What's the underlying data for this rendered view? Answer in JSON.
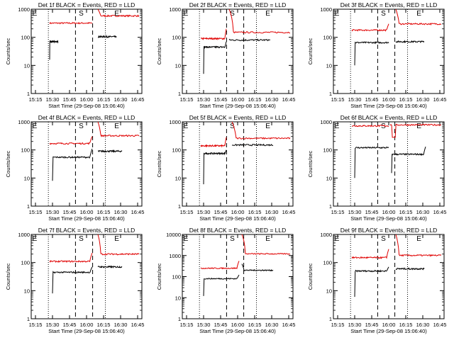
{
  "chart_data": [
    {
      "type": "line",
      "title": "Det 1f BLACK = Events, RED = LLD",
      "xlabel": "Start Time (29-Sep-08 15:06:40)",
      "ylabel": "Counts/sec",
      "xticks": [
        "15:15",
        "15:30",
        "15:45",
        "16:00",
        "16:15",
        "16:30",
        "16:45"
      ],
      "yticks": [
        "1",
        "10",
        "100",
        "1000"
      ],
      "ylim": [
        1,
        1000
      ],
      "yscale": "log",
      "markers": [
        "S",
        "E"
      ],
      "series": [
        {
          "name": "LLD",
          "color": "#e00000",
          "segments": [
            {
              "t0": 15.5,
              "t1": 30.5,
              "base": 320
            },
            {
              "t0": 32.5,
              "t1": 47,
              "base": 580,
              "peak": 1000
            }
          ]
        },
        {
          "name": "Events",
          "color": "#000000",
          "segments": [
            {
              "t0": 15.5,
              "t1": 18.5,
              "base": 70,
              "start": 16
            },
            {
              "t0": 32.5,
              "t1": 39,
              "base": 105
            }
          ]
        }
      ]
    },
    {
      "type": "line",
      "title": "Det 2f BLACK = Events, RED = LLD",
      "xlabel": "Start Time (29-Sep-08 15:06:40)",
      "ylabel": "Counts/sec",
      "xticks": [
        "15:15",
        "15:30",
        "15:45",
        "16:00",
        "16:15",
        "16:30",
        "16:45"
      ],
      "yticks": [
        "1",
        "10",
        "100",
        "1000"
      ],
      "ylim": [
        1,
        1000
      ],
      "yscale": "log",
      "markers": [
        "S",
        "E"
      ],
      "series": [
        {
          "name": "LLD",
          "color": "#e00000",
          "segments": [
            {
              "t0": 15.5,
              "t1": 24.5,
              "base": 90,
              "end": 200
            },
            {
              "t0": 25.5,
              "t1": 47,
              "base": 150,
              "peak": 1000
            }
          ]
        },
        {
          "name": "Events",
          "color": "#000000",
          "segments": [
            {
              "t0": 16.5,
              "t1": 24.5,
              "base": 45,
              "start": 5,
              "end": 70
            },
            {
              "t0": 25.5,
              "t1": 40,
              "base": 80
            }
          ]
        }
      ]
    },
    {
      "type": "line",
      "title": "Det 3f BLACK = Events, RED = LLD",
      "xlabel": "Start Time (29-Sep-08 15:06:40)",
      "ylabel": "Counts/sec",
      "xticks": [
        "15:15",
        "15:30",
        "15:45",
        "16:00",
        "16:15",
        "16:30",
        "16:45"
      ],
      "yticks": [
        "1",
        "10",
        "100",
        "1000"
      ],
      "ylim": [
        1,
        1000
      ],
      "yscale": "log",
      "markers": [
        "S",
        "E"
      ],
      "series": [
        {
          "name": "LLD",
          "color": "#e00000",
          "segments": [
            {
              "t0": 15.5,
              "t1": 28.5,
              "base": 180,
              "end": 300
            },
            {
              "t0": 31,
              "t1": 47,
              "base": 300,
              "peak": 1000
            }
          ]
        },
        {
          "name": "Events",
          "color": "#000000",
          "segments": [
            {
              "t0": 16.5,
              "t1": 28.5,
              "base": 65,
              "start": 10
            },
            {
              "t0": 31,
              "t1": 41,
              "base": 70
            }
          ]
        }
      ]
    },
    {
      "type": "line",
      "title": "Det 4f BLACK = Events, RED = LLD",
      "xlabel": "Start Time (29-Sep-08 15:06:40)",
      "ylabel": "Counts/sec",
      "xticks": [
        "15:15",
        "15:30",
        "15:45",
        "16:00",
        "16:15",
        "16:30",
        "16:45"
      ],
      "yticks": [
        "1",
        "10",
        "100",
        "1000"
      ],
      "ylim": [
        1,
        1000
      ],
      "yscale": "log",
      "markers": [
        "S",
        "E"
      ],
      "series": [
        {
          "name": "LLD",
          "color": "#e00000",
          "segments": [
            {
              "t0": 15.5,
              "t1": 30.5,
              "base": 170,
              "end": 300
            },
            {
              "t0": 32.5,
              "t1": 47,
              "base": 320,
              "peak": 1000
            }
          ]
        },
        {
          "name": "Events",
          "color": "#000000",
          "segments": [
            {
              "t0": 16.5,
              "t1": 30.5,
              "base": 55,
              "start": 8,
              "end": 110
            },
            {
              "t0": 32.5,
              "t1": 41,
              "base": 90
            }
          ]
        }
      ]
    },
    {
      "type": "line",
      "title": "Det 5f BLACK = Events, RED = LLD",
      "xlabel": "Start Time (29-Sep-08 15:06:40)",
      "ylabel": "Counts/sec",
      "xticks": [
        "15:15",
        "15:30",
        "15:45",
        "16:00",
        "16:15",
        "16:30",
        "16:45"
      ],
      "yticks": [
        "1",
        "10",
        "100",
        "1000"
      ],
      "ylim": [
        1,
        1000
      ],
      "yscale": "log",
      "markers": [
        "S",
        "E"
      ],
      "series": [
        {
          "name": "LLD",
          "color": "#e00000",
          "segments": [
            {
              "t0": 15.5,
              "t1": 24.5,
              "base": 140,
              "end": 280
            },
            {
              "t0": 26.5,
              "t1": 47,
              "base": 260,
              "peak": 1000
            }
          ]
        },
        {
          "name": "Events",
          "color": "#000000",
          "segments": [
            {
              "t0": 16.5,
              "t1": 24.5,
              "base": 75,
              "start": 6,
              "end": 100
            },
            {
              "t0": 26.5,
              "t1": 41,
              "base": 150
            }
          ]
        }
      ]
    },
    {
      "type": "line",
      "title": "Det 6f BLACK = Events, RED = LLD",
      "xlabel": "Start Time (29-Sep-08 15:06:40)",
      "ylabel": "Counts/sec",
      "xticks": [
        "15:15",
        "15:30",
        "15:45",
        "16:00",
        "16:15",
        "16:30",
        "16:45"
      ],
      "yticks": [
        "1",
        "10",
        "100",
        "1000"
      ],
      "ylim": [
        1,
        1000
      ],
      "yscale": "log",
      "markers": [
        "S",
        "E"
      ],
      "series": [
        {
          "name": "LLD",
          "color": "#e00000",
          "segments": [
            {
              "t0": 15.5,
              "t1": 28.5,
              "base": 720
            },
            {
              "t0": 29,
              "t1": 47,
              "base": 780,
              "dip": 280
            }
          ]
        },
        {
          "name": "Events",
          "color": "#000000",
          "segments": [
            {
              "t0": 16.5,
              "t1": 28.5,
              "base": 120,
              "start": 10
            },
            {
              "t0": 29.5,
              "t1": 41.5,
              "base": 70,
              "start": 15,
              "end": 130
            }
          ]
        }
      ]
    },
    {
      "type": "line",
      "title": "Det 7f BLACK = Events, RED = LLD",
      "xlabel": "Start Time (29-Sep-08 15:06:40)",
      "ylabel": "Counts/sec",
      "xticks": [
        "15:15",
        "15:30",
        "15:45",
        "16:00",
        "16:15",
        "16:30",
        "16:45"
      ],
      "yticks": [
        "1",
        "10",
        "100",
        "1000"
      ],
      "ylim": [
        1,
        1000
      ],
      "yscale": "log",
      "markers": [
        "S",
        "E"
      ],
      "series": [
        {
          "name": "LLD",
          "color": "#e00000",
          "segments": [
            {
              "t0": 15.5,
              "t1": 30.5,
              "base": 110,
              "end": 220
            },
            {
              "t0": 32.5,
              "t1": 47,
              "base": 200,
              "peak": 1000
            }
          ]
        },
        {
          "name": "Events",
          "color": "#000000",
          "segments": [
            {
              "t0": 16.5,
              "t1": 30.5,
              "base": 45,
              "start": 8,
              "end": 70
            },
            {
              "t0": 32.5,
              "t1": 41,
              "base": 70
            }
          ]
        }
      ]
    },
    {
      "type": "line",
      "title": "Det 8f BLACK = Events, RED = LLD",
      "xlabel": "Start Time (29-Sep-08 15:06:40)",
      "ylabel": "Counts/sec",
      "xticks": [
        "15:15",
        "15:30",
        "15:45",
        "16:00",
        "16:15",
        "16:30",
        "16:45"
      ],
      "yticks": [
        "1",
        "10",
        "100",
        "1000",
        "10000"
      ],
      "ylim": [
        1,
        10000
      ],
      "yscale": "log",
      "markers": [
        "S",
        "E"
      ],
      "series": [
        {
          "name": "LLD",
          "color": "#e00000",
          "segments": [
            {
              "t0": 15.5,
              "t1": 29,
              "base": 250,
              "end": 550
            },
            {
              "t0": 30,
              "t1": 47,
              "base": 1200,
              "peak": 10000
            }
          ]
        },
        {
          "name": "Events",
          "color": "#000000",
          "segments": [
            {
              "t0": 16.5,
              "t1": 29,
              "base": 80,
              "start": 12,
              "end": 120
            },
            {
              "t0": 30,
              "t1": 41,
              "base": 200,
              "peak": 400
            }
          ]
        }
      ]
    },
    {
      "type": "line",
      "title": "Det 9f BLACK = Events, RED = LLD",
      "xlabel": "Start Time (29-Sep-08 15:06:40)",
      "ylabel": "Counts/sec",
      "xticks": [
        "15:15",
        "15:30",
        "15:45",
        "16:00",
        "16:15",
        "16:30",
        "16:45"
      ],
      "yticks": [
        "1",
        "10",
        "100",
        "1000"
      ],
      "ylim": [
        1,
        1000
      ],
      "yscale": "log",
      "markers": [
        "S",
        "E"
      ],
      "series": [
        {
          "name": "LLD",
          "color": "#e00000",
          "segments": [
            {
              "t0": 15.5,
              "t1": 28.5,
              "base": 150,
              "end": 300
            },
            {
              "t0": 31,
              "t1": 47,
              "base": 180,
              "peak": 1000
            }
          ]
        },
        {
          "name": "Events",
          "color": "#000000",
          "segments": [
            {
              "t0": 16.5,
              "t1": 28.5,
              "base": 50,
              "start": 6,
              "end": 70
            },
            {
              "t0": 31,
              "t1": 41,
              "base": 60
            }
          ]
        }
      ]
    }
  ]
}
